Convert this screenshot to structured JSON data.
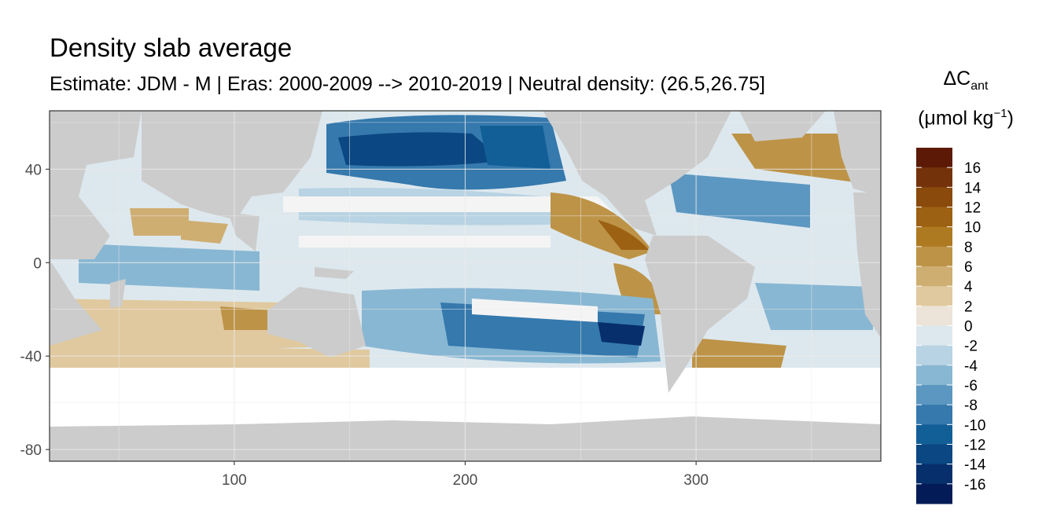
{
  "chart_data": {
    "type": "heatmap",
    "title": "Density slab average",
    "subtitle": "Estimate: JDM - M | Eras: 2000-2009 --> 2010-2019 | Neutral density: (26.5,26.75]",
    "xlabel": "",
    "ylabel": "",
    "xlim": [
      20,
      380
    ],
    "ylim": [
      -85,
      65
    ],
    "x_ticks": [
      100,
      200,
      300
    ],
    "y_ticks": [
      40,
      0,
      -40,
      -80
    ],
    "grid": true,
    "legend": {
      "placement": "right",
      "title_main": "ΔC",
      "title_sub": "ant",
      "unit_prefix": "(μmol kg",
      "unit_sup": "−1",
      "unit_suffix": ")",
      "labels": [
        "16",
        "14",
        "12",
        "10",
        "8",
        "6",
        "4",
        "2",
        "0",
        "-2",
        "-4",
        "-6",
        "-8",
        "-10",
        "-12",
        "-14",
        "-16"
      ],
      "colors": [
        "#5c1a06",
        "#74320a",
        "#8a4a0c",
        "#9c6112",
        "#ad7a22",
        "#bd9347",
        "#cfae72",
        "#e0c99e",
        "#ece4d8",
        "#dde8ee",
        "#b8d3e3",
        "#88b7d3",
        "#5b97c1",
        "#3579ad",
        "#125f98",
        "#0b4783",
        "#062f6c",
        "#031c57"
      ]
    },
    "colors": {
      "land": "#cccccc",
      "panel_border": "#333333",
      "grid": "#ebebeb"
    }
  }
}
